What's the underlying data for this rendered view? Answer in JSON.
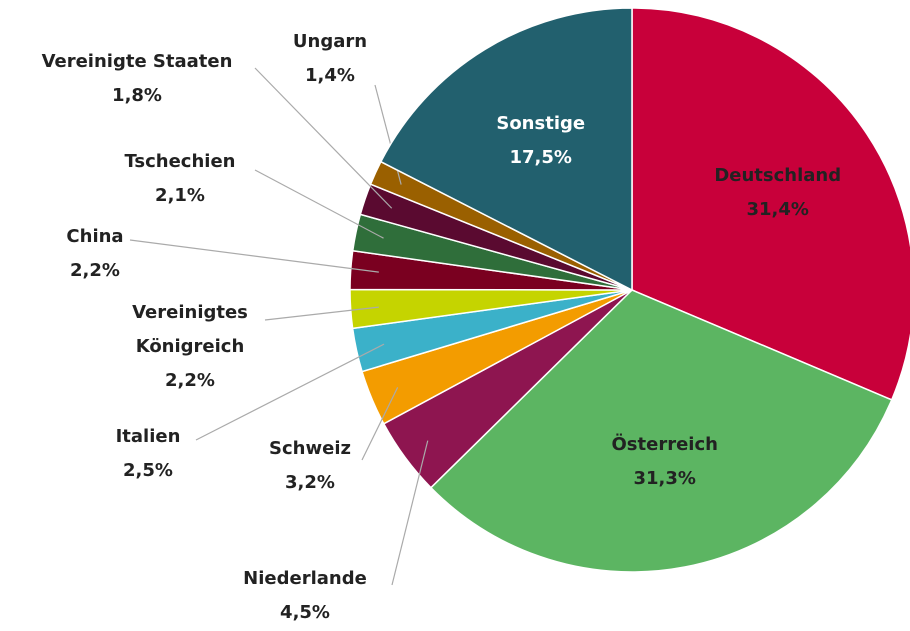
{
  "chart_data": {
    "type": "pie",
    "categories": [
      "Deutschland",
      "Österreich",
      "Niederlande",
      "Schweiz",
      "Italien",
      "Vereinigtes Königreich",
      "China",
      "Tschechien",
      "Vereinigte Staaten",
      "Ungarn",
      "Sonstige"
    ],
    "values": [
      31.4,
      31.3,
      4.5,
      3.2,
      2.5,
      2.2,
      2.2,
      2.1,
      1.8,
      1.4,
      17.5
    ],
    "value_labels": [
      "31,4%",
      "31,3%",
      "4,5%",
      "3,2%",
      "2,5%",
      "2,2%",
      "2,2%",
      "2,1%",
      "1,8%",
      "1,4%",
      "17,5%"
    ],
    "colors": [
      "#c8003a",
      "#5cb562",
      "#8e1550",
      "#f39c00",
      "#3bb1c9",
      "#c5d400",
      "#7a0020",
      "#2f6e3a",
      "#5a0a30",
      "#9a6000",
      "#22606e"
    ]
  }
}
